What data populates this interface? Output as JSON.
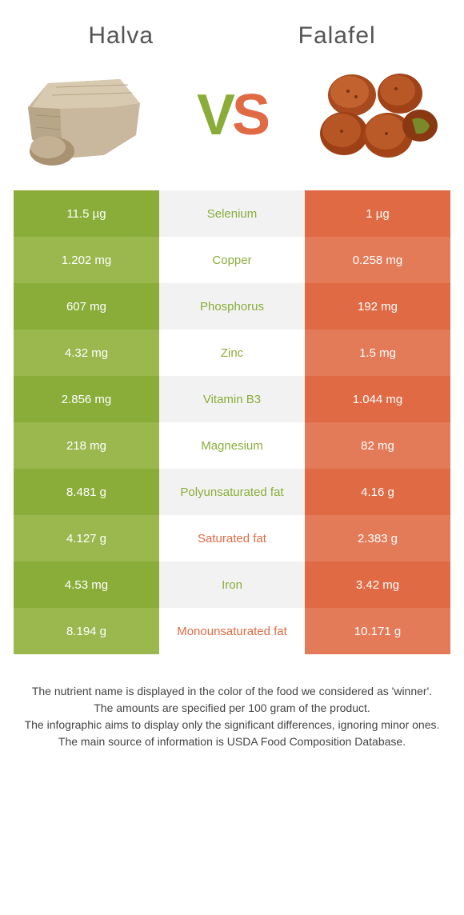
{
  "food1_title": "Halva",
  "food2_title": "Falafel",
  "vs_v": "V",
  "vs_s": "S",
  "colors": {
    "green_main": "#8aad3a",
    "green_alt": "#9ab84e",
    "orange_main": "#e06a44",
    "orange_alt": "#e37a58",
    "mid_bg_odd": "#f2f2f2",
    "mid_bg_even": "#ffffff",
    "mid_green": "#8aad3a",
    "mid_orange": "#e06a44"
  },
  "rows": [
    {
      "left": "11.5 µg",
      "mid": "Selenium",
      "right": "1 µg",
      "winner": "left"
    },
    {
      "left": "1.202 mg",
      "mid": "Copper",
      "right": "0.258 mg",
      "winner": "left"
    },
    {
      "left": "607 mg",
      "mid": "Phosphorus",
      "right": "192 mg",
      "winner": "left"
    },
    {
      "left": "4.32 mg",
      "mid": "Zinc",
      "right": "1.5 mg",
      "winner": "left"
    },
    {
      "left": "2.856 mg",
      "mid": "Vitamin B3",
      "right": "1.044 mg",
      "winner": "left"
    },
    {
      "left": "218 mg",
      "mid": "Magnesium",
      "right": "82 mg",
      "winner": "left"
    },
    {
      "left": "8.481 g",
      "mid": "Polyunsaturated fat",
      "right": "4.16 g",
      "winner": "left"
    },
    {
      "left": "4.127 g",
      "mid": "Saturated fat",
      "right": "2.383 g",
      "winner": "right"
    },
    {
      "left": "4.53 mg",
      "mid": "Iron",
      "right": "3.42 mg",
      "winner": "left"
    },
    {
      "left": "8.194 g",
      "mid": "Monounsaturated fat",
      "right": "10.171 g",
      "winner": "right"
    }
  ],
  "footer": {
    "l1": "The nutrient name is displayed in the color of the food we considered as 'winner'.",
    "l2": "The amounts are specified per 100 gram of the product.",
    "l3": "The infographic aims to display only the significant differences, ignoring minor ones.",
    "l4": "The main source of information is USDA Food Composition Database."
  }
}
